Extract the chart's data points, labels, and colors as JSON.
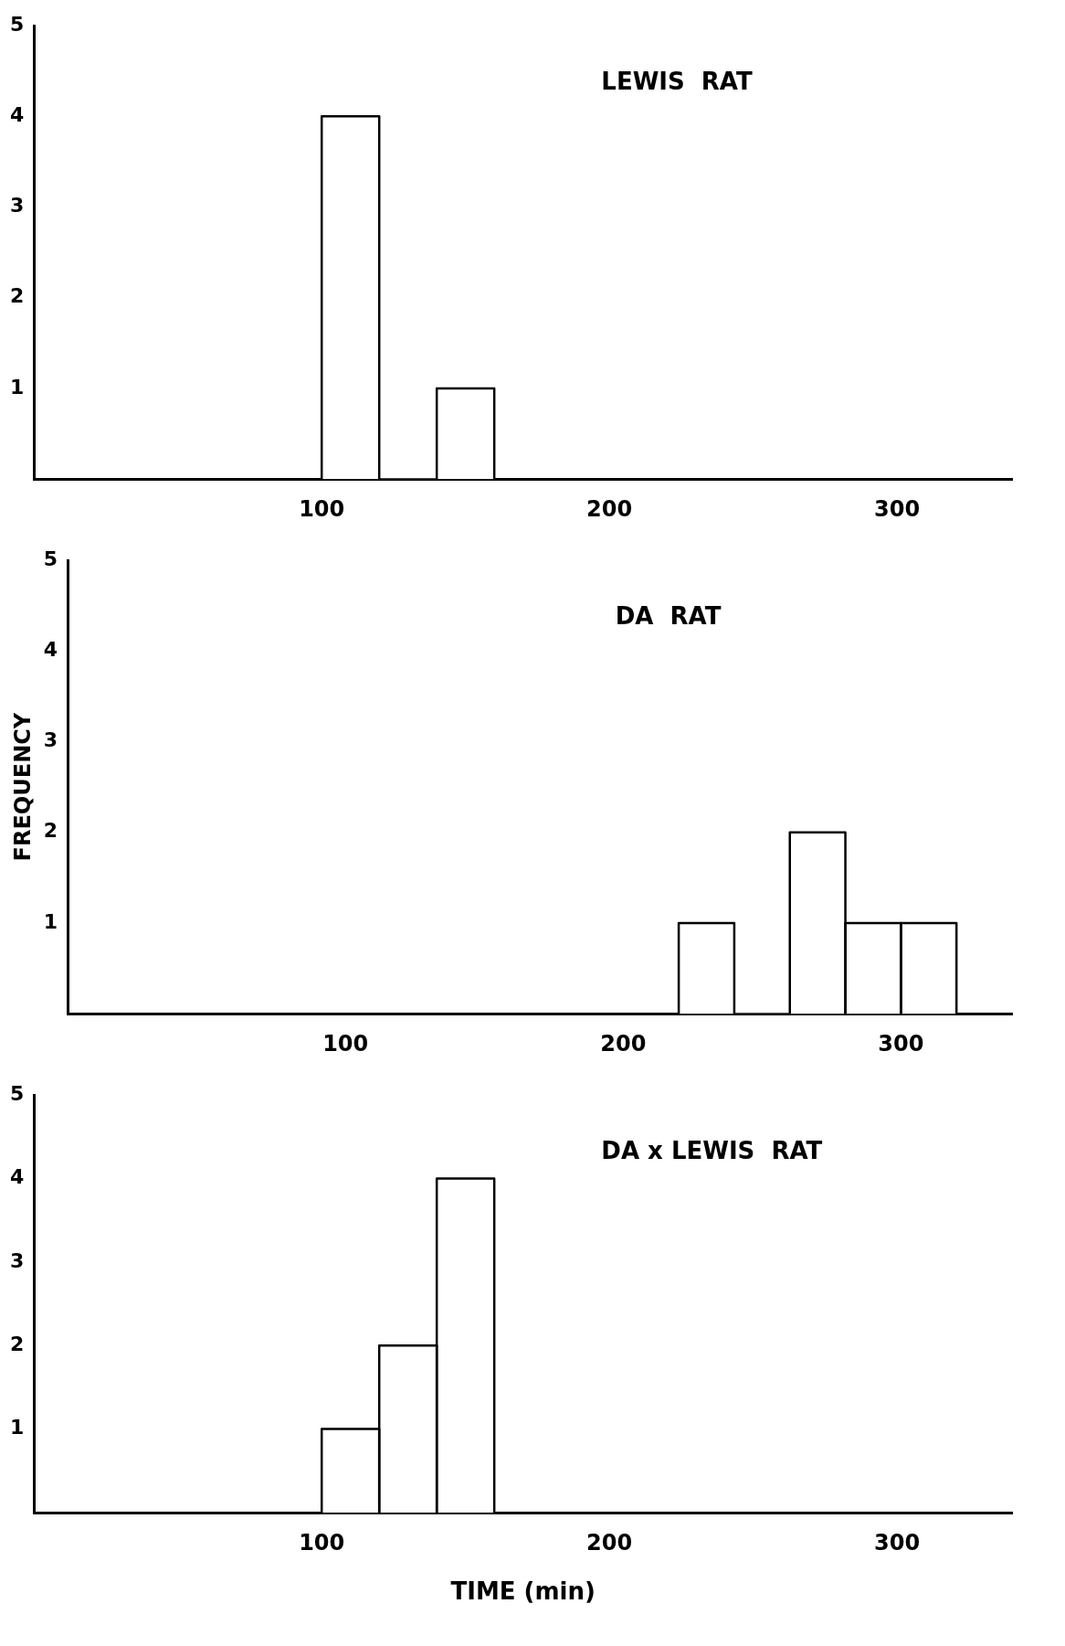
{
  "chart_data": [
    {
      "type": "histogram",
      "title": "LEWIS  RAT",
      "bins": [
        100,
        120,
        140,
        160
      ],
      "values": [
        4,
        0,
        1
      ],
      "color": "#ffffff",
      "xlim": [
        0,
        340
      ],
      "xticks": [
        100,
        200,
        300
      ],
      "ylim": [
        0,
        5
      ],
      "yticks": [
        1,
        2,
        3,
        4,
        5
      ],
      "grid": false
    },
    {
      "type": "histogram",
      "title": "DA  RAT",
      "ylabel": "FREQUENCY",
      "bins": [
        220,
        240,
        260,
        280,
        300,
        320
      ],
      "values": [
        1,
        0,
        2,
        1,
        1
      ],
      "color": "#ffffff",
      "xlim": [
        0,
        340
      ],
      "xticks": [
        100,
        200,
        300
      ],
      "ylim": [
        0,
        5
      ],
      "yticks": [
        1,
        2,
        3,
        4,
        5
      ],
      "grid": false
    },
    {
      "type": "histogram",
      "title": "DA x LEWIS  RAT",
      "xlabel": "TIME (min)",
      "bins": [
        100,
        120,
        140,
        160
      ],
      "values": [
        1,
        2,
        4
      ],
      "color": "#ffffff",
      "xlim": [
        0,
        340
      ],
      "xticks": [
        100,
        200,
        300
      ],
      "ylim": [
        0,
        5
      ],
      "yticks": [
        1,
        2,
        3,
        4,
        5
      ],
      "grid": false
    }
  ]
}
